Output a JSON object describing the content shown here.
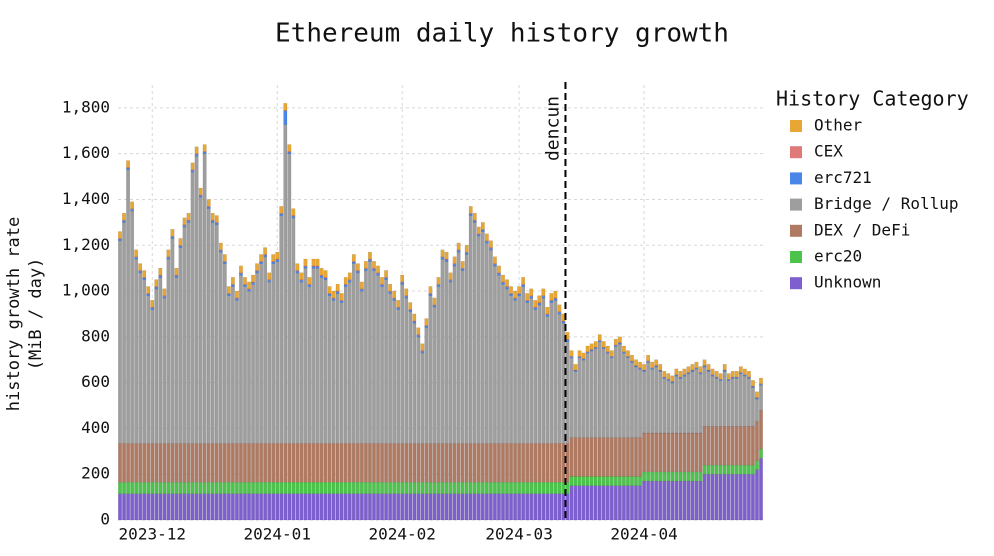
{
  "chart_data": {
    "type": "stacked_bar",
    "title": "Ethereum daily history growth",
    "ylabel": [
      "history growth rate",
      "(MiB / day)"
    ],
    "legend_title": "History Category",
    "legend": "right",
    "grid": true,
    "ylim": [
      0,
      1900
    ],
    "yticks": [
      0,
      200,
      400,
      600,
      800,
      {
        "value": 1000,
        "label": "1,000"
      },
      {
        "value": 1200,
        "label": "1,200"
      },
      {
        "value": 1400,
        "label": "1,400"
      },
      {
        "value": 1600,
        "label": "1,600"
      },
      {
        "value": 1800,
        "label": "1,800"
      }
    ],
    "annotations": [
      {
        "label": "dencun",
        "x_index": 111
      }
    ],
    "categories": [
      null,
      null,
      null,
      null,
      null,
      null,
      null,
      null,
      "2023-12",
      null,
      null,
      null,
      null,
      null,
      null,
      null,
      null,
      null,
      null,
      null,
      null,
      null,
      null,
      null,
      null,
      null,
      null,
      null,
      null,
      null,
      null,
      null,
      null,
      null,
      null,
      null,
      null,
      null,
      null,
      "2024-01",
      null,
      null,
      null,
      null,
      null,
      null,
      null,
      null,
      null,
      null,
      null,
      null,
      null,
      null,
      null,
      null,
      null,
      null,
      null,
      null,
      null,
      null,
      null,
      null,
      null,
      null,
      null,
      null,
      null,
      null,
      "2024-02",
      null,
      null,
      null,
      null,
      null,
      null,
      null,
      null,
      null,
      null,
      null,
      null,
      null,
      null,
      null,
      null,
      null,
      null,
      null,
      null,
      null,
      null,
      null,
      null,
      null,
      null,
      null,
      null,
      "2024-03",
      null,
      null,
      null,
      null,
      null,
      null,
      null,
      null,
      null,
      null,
      null,
      null,
      null,
      null,
      null,
      null,
      null,
      null,
      null,
      null,
      null,
      null,
      null,
      null,
      null,
      null,
      null,
      null,
      null,
      null,
      "2024-04",
      null,
      null,
      null,
      null,
      null,
      null,
      null,
      null,
      null,
      null,
      null,
      null,
      null,
      null,
      null,
      null,
      null,
      null,
      null,
      null,
      null,
      null,
      null,
      null,
      null,
      null,
      null,
      null,
      null
    ],
    "series": [
      {
        "name": "Unknown",
        "color": "#7e5fcf",
        "values": [
          115,
          115,
          115,
          115,
          115,
          115,
          115,
          115,
          115,
          115,
          115,
          115,
          115,
          115,
          115,
          115,
          115,
          115,
          115,
          115,
          115,
          115,
          115,
          115,
          115,
          115,
          115,
          115,
          115,
          115,
          115,
          115,
          115,
          115,
          115,
          115,
          115,
          115,
          115,
          115,
          115,
          115,
          115,
          115,
          115,
          115,
          115,
          115,
          115,
          115,
          115,
          115,
          115,
          115,
          115,
          115,
          115,
          115,
          115,
          115,
          115,
          115,
          115,
          115,
          115,
          115,
          115,
          115,
          115,
          115,
          115,
          115,
          115,
          115,
          115,
          115,
          115,
          115,
          115,
          115,
          115,
          115,
          115,
          115,
          115,
          115,
          115,
          115,
          115,
          115,
          115,
          115,
          115,
          115,
          115,
          115,
          115,
          115,
          115,
          115,
          115,
          115,
          115,
          115,
          115,
          115,
          115,
          115,
          115,
          115,
          115,
          115,
          150,
          150,
          150,
          150,
          150,
          150,
          150,
          150,
          150,
          150,
          150,
          150,
          150,
          150,
          150,
          150,
          150,
          150,
          170,
          170,
          170,
          170,
          170,
          170,
          170,
          170,
          170,
          170,
          170,
          170,
          170,
          170,
          170,
          200,
          200,
          200,
          200,
          200,
          200,
          200,
          200,
          200,
          200,
          200,
          200,
          200,
          220,
          270
        ]
      },
      {
        "name": "erc20",
        "color": "#4cc44c",
        "values": [
          50,
          50,
          50,
          50,
          50,
          50,
          50,
          50,
          50,
          50,
          50,
          50,
          50,
          50,
          50,
          50,
          50,
          50,
          50,
          50,
          50,
          50,
          50,
          50,
          50,
          50,
          50,
          50,
          50,
          50,
          50,
          50,
          50,
          50,
          50,
          50,
          50,
          50,
          50,
          50,
          50,
          50,
          50,
          50,
          50,
          50,
          50,
          50,
          50,
          50,
          50,
          50,
          50,
          50,
          50,
          50,
          50,
          50,
          50,
          50,
          50,
          50,
          50,
          50,
          50,
          50,
          50,
          50,
          50,
          50,
          50,
          50,
          50,
          50,
          50,
          50,
          50,
          50,
          50,
          50,
          50,
          50,
          50,
          50,
          50,
          50,
          50,
          50,
          50,
          50,
          50,
          50,
          50,
          50,
          50,
          50,
          50,
          50,
          50,
          50,
          50,
          50,
          50,
          50,
          50,
          50,
          50,
          50,
          50,
          50,
          50,
          50,
          40,
          40,
          40,
          40,
          40,
          40,
          40,
          40,
          40,
          40,
          40,
          40,
          40,
          40,
          40,
          40,
          40,
          40,
          40,
          40,
          40,
          40,
          40,
          40,
          40,
          40,
          40,
          40,
          40,
          40,
          40,
          40,
          40,
          40,
          40,
          40,
          40,
          40,
          40,
          40,
          40,
          40,
          40,
          40,
          40,
          40,
          40,
          40
        ]
      },
      {
        "name": "DEX / DeFi",
        "color": "#b07a62",
        "values": [
          170,
          170,
          170,
          170,
          170,
          170,
          170,
          170,
          170,
          170,
          170,
          170,
          170,
          170,
          170,
          170,
          170,
          170,
          170,
          170,
          170,
          170,
          170,
          170,
          170,
          170,
          170,
          170,
          170,
          170,
          170,
          170,
          170,
          170,
          170,
          170,
          170,
          170,
          170,
          170,
          170,
          170,
          170,
          170,
          170,
          170,
          170,
          170,
          170,
          170,
          170,
          170,
          170,
          170,
          170,
          170,
          170,
          170,
          170,
          170,
          170,
          170,
          170,
          170,
          170,
          170,
          170,
          170,
          170,
          170,
          170,
          170,
          170,
          170,
          170,
          170,
          170,
          170,
          170,
          170,
          170,
          170,
          170,
          170,
          170,
          170,
          170,
          170,
          170,
          170,
          170,
          170,
          170,
          170,
          170,
          170,
          170,
          170,
          170,
          170,
          170,
          170,
          170,
          170,
          170,
          170,
          170,
          170,
          170,
          170,
          170,
          170,
          170,
          170,
          170,
          170,
          170,
          170,
          170,
          170,
          170,
          170,
          170,
          170,
          170,
          170,
          170,
          170,
          170,
          170,
          170,
          170,
          170,
          170,
          170,
          170,
          170,
          170,
          170,
          170,
          170,
          170,
          170,
          170,
          170,
          170,
          170,
          170,
          170,
          170,
          170,
          170,
          170,
          170,
          170,
          170,
          170,
          170,
          170,
          170
        ]
      },
      {
        "name": "Bridge / Rollup",
        "color": "#9e9e9e",
        "values": [
          884,
          964,
          1194,
          1014,
          804,
          744,
          714,
          644,
          584,
          674,
          724,
          634,
          804,
          894,
          724,
          854,
          944,
          964,
          1184,
          1254,
          1074,
          1264,
          1024,
          964,
          954,
          834,
          784,
          644,
          684,
          624,
          734,
          684,
          664,
          694,
          744,
          784,
          814,
          704,
          784,
          794,
          994,
          1392,
          1264,
          984,
          744,
          704,
          764,
          684,
          764,
          764,
          724,
          714,
          644,
          624,
          654,
          614,
          684,
          704,
          784,
          744,
          664,
          754,
          794,
          754,
          734,
          684,
          714,
          654,
          624,
          584,
          694,
          634,
          574,
          524,
          464,
          394,
          504,
          644,
          594,
          684,
          804,
          794,
          704,
          774,
          834,
          754,
          824,
          994,
          964,
          904,
          924,
          874,
          844,
          774,
          734,
          694,
          674,
          644,
          624,
          644,
          684,
          614,
          634,
          584,
          604,
          634,
          554,
          614,
          624,
          564,
          524,
          444,
          348,
          288,
          348,
          338,
          368,
          378,
          388,
          418,
          388,
          368,
          348,
          398,
          408,
          368,
          348,
          328,
          308,
          298,
          268,
          308,
          278,
          288,
          268,
          238,
          228,
          218,
          248,
          238,
          248,
          258,
          268,
          278,
          258,
          258,
          238,
          218,
          208,
          198,
          238,
          198,
          208,
          208,
          228,
          218,
          208,
          168,
          98,
          108
        ]
      },
      {
        "name": "erc721",
        "color": "#4a86e8",
        "values": [
          8,
          8,
          8,
          8,
          8,
          8,
          8,
          8,
          8,
          8,
          8,
          8,
          8,
          8,
          8,
          8,
          8,
          8,
          8,
          8,
          8,
          8,
          8,
          8,
          8,
          8,
          8,
          8,
          8,
          8,
          8,
          8,
          8,
          8,
          8,
          8,
          8,
          8,
          8,
          8,
          8,
          60,
          8,
          8,
          8,
          8,
          8,
          8,
          8,
          8,
          8,
          8,
          8,
          8,
          8,
          8,
          8,
          8,
          8,
          8,
          8,
          8,
          8,
          8,
          8,
          8,
          8,
          8,
          8,
          8,
          8,
          8,
          8,
          8,
          8,
          8,
          8,
          8,
          8,
          8,
          8,
          8,
          8,
          8,
          8,
          8,
          8,
          8,
          8,
          8,
          8,
          8,
          8,
          8,
          8,
          8,
          8,
          8,
          8,
          8,
          8,
          8,
          8,
          8,
          8,
          8,
          8,
          8,
          8,
          8,
          8,
          8,
          5,
          5,
          5,
          5,
          5,
          5,
          5,
          5,
          5,
          5,
          5,
          5,
          5,
          5,
          5,
          5,
          5,
          5,
          5,
          5,
          5,
          5,
          5,
          5,
          5,
          5,
          5,
          5,
          5,
          5,
          5,
          5,
          5,
          5,
          5,
          5,
          5,
          5,
          5,
          5,
          5,
          5,
          5,
          5,
          5,
          5,
          5,
          5
        ]
      },
      {
        "name": "CEX",
        "color": "#e07a7a",
        "values": [
          3,
          3,
          3,
          3,
          3,
          3,
          3,
          3,
          3,
          3,
          3,
          3,
          3,
          3,
          3,
          3,
          3,
          3,
          3,
          3,
          3,
          3,
          3,
          3,
          3,
          3,
          3,
          3,
          3,
          3,
          3,
          3,
          3,
          3,
          3,
          3,
          3,
          3,
          3,
          3,
          3,
          3,
          3,
          3,
          3,
          3,
          3,
          3,
          3,
          3,
          3,
          3,
          3,
          3,
          3,
          3,
          3,
          3,
          3,
          3,
          3,
          3,
          3,
          3,
          3,
          3,
          3,
          3,
          3,
          3,
          3,
          3,
          3,
          3,
          3,
          3,
          3,
          3,
          3,
          3,
          3,
          3,
          3,
          3,
          3,
          3,
          3,
          3,
          3,
          3,
          3,
          3,
          3,
          3,
          3,
          3,
          3,
          3,
          3,
          3,
          3,
          3,
          3,
          3,
          3,
          3,
          3,
          3,
          3,
          3,
          3,
          3,
          2,
          2,
          2,
          2,
          2,
          2,
          2,
          2,
          2,
          2,
          2,
          2,
          2,
          2,
          2,
          2,
          2,
          2,
          2,
          2,
          2,
          2,
          2,
          2,
          2,
          2,
          2,
          2,
          2,
          2,
          2,
          2,
          2,
          2,
          2,
          2,
          2,
          2,
          2,
          2,
          2,
          2,
          2,
          2,
          2,
          2,
          2,
          2
        ]
      },
      {
        "name": "Other",
        "color": "#e8a735",
        "values": [
          30,
          30,
          30,
          30,
          30,
          30,
          30,
          30,
          30,
          30,
          30,
          30,
          30,
          30,
          30,
          30,
          30,
          30,
          30,
          30,
          30,
          30,
          30,
          30,
          30,
          30,
          30,
          30,
          30,
          30,
          30,
          30,
          30,
          30,
          30,
          30,
          30,
          30,
          30,
          30,
          30,
          30,
          30,
          30,
          30,
          30,
          30,
          30,
          30,
          30,
          30,
          30,
          30,
          30,
          30,
          30,
          30,
          30,
          30,
          30,
          30,
          30,
          30,
          30,
          30,
          30,
          30,
          30,
          30,
          30,
          30,
          30,
          30,
          30,
          30,
          30,
          30,
          30,
          30,
          30,
          30,
          30,
          30,
          30,
          30,
          30,
          30,
          30,
          30,
          30,
          30,
          30,
          30,
          30,
          30,
          30,
          30,
          30,
          30,
          30,
          30,
          30,
          30,
          30,
          30,
          30,
          30,
          30,
          30,
          30,
          30,
          30,
          25,
          25,
          25,
          25,
          25,
          25,
          25,
          25,
          25,
          25,
          25,
          25,
          25,
          25,
          25,
          25,
          25,
          25,
          25,
          25,
          25,
          25,
          25,
          25,
          25,
          25,
          25,
          25,
          25,
          25,
          25,
          25,
          25,
          25,
          25,
          25,
          25,
          25,
          25,
          25,
          25,
          25,
          25,
          25,
          25,
          25,
          25,
          25
        ]
      }
    ]
  }
}
